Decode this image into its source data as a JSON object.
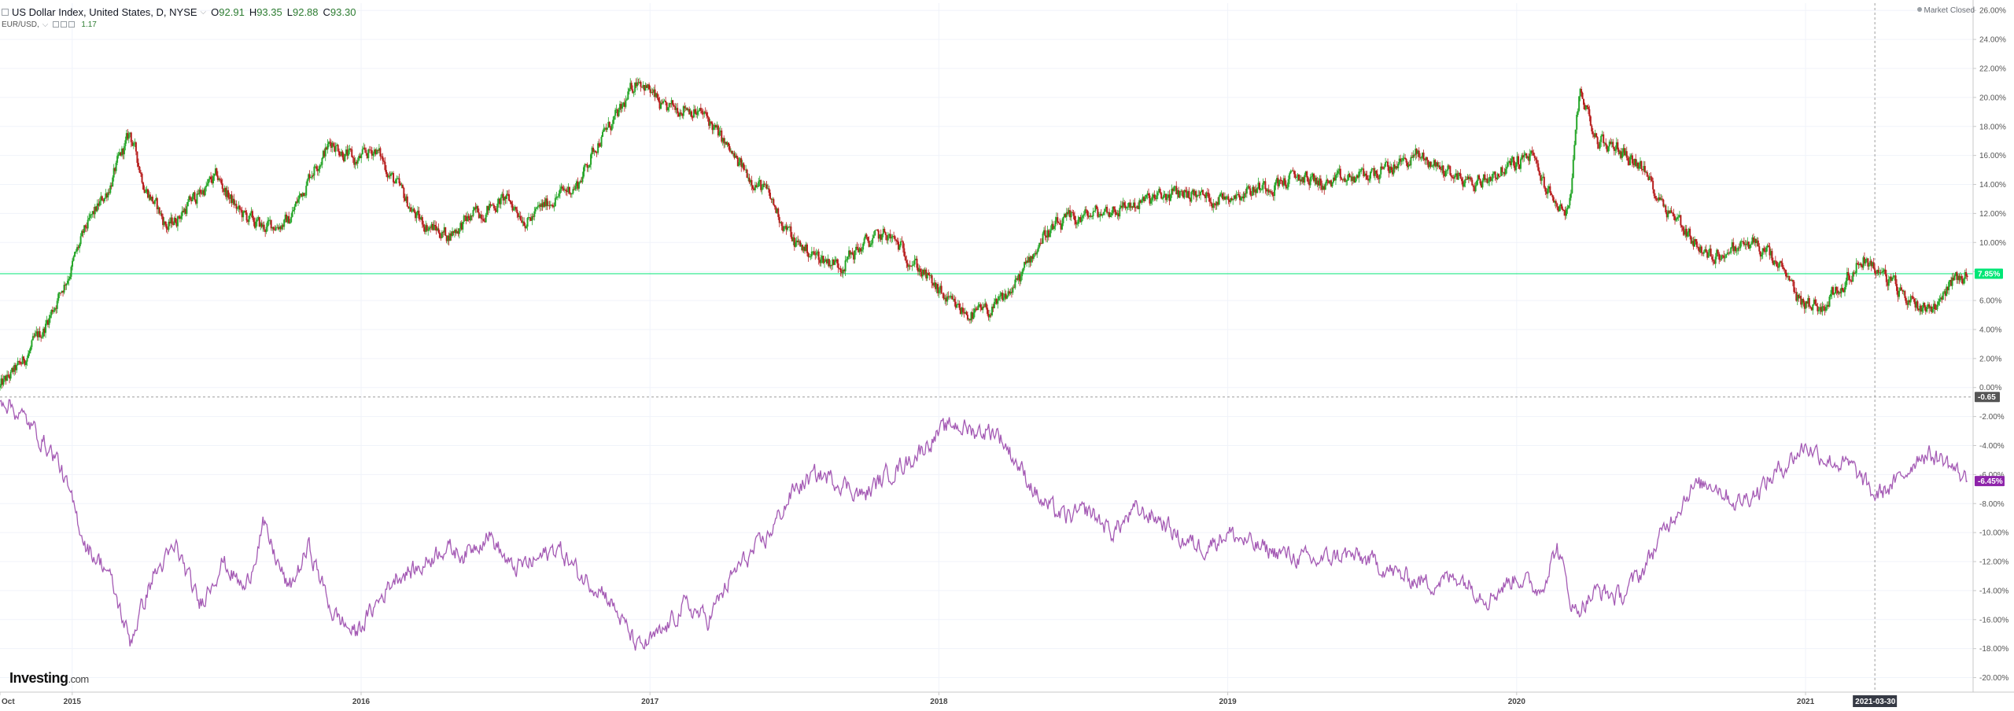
{
  "legend": {
    "main_symbol": "US Dollar Index, United States, D, NYSE",
    "open_label": "O",
    "open": "92.91",
    "high_label": "H",
    "high": "93.35",
    "low_label": "L",
    "low": "92.88",
    "close_label": "C",
    "close": "93.30",
    "compare_symbol": "EUR/USD,",
    "compare_value": "1.17"
  },
  "status": {
    "market": "Market Closed"
  },
  "logo": {
    "text": "Investing",
    "suffix": ".com"
  },
  "colors": {
    "up": "#26a629",
    "down": "#b71c1c",
    "compare_line": "#a45ab4",
    "price_line": "#00e676",
    "compare_badge": "#8e24aa",
    "zero_badge": "#555555"
  },
  "chart_data": {
    "type": "line",
    "x_axis_labels": [
      "Oct",
      "2015",
      "2016",
      "2017",
      "2018",
      "2019",
      "2020",
      "2021"
    ],
    "y_ticks": [
      "26.00%",
      "24.00%",
      "22.00%",
      "20.00%",
      "18.00%",
      "16.00%",
      "14.00%",
      "12.00%",
      "10.00%",
      "8.00%",
      "6.00%",
      "4.00%",
      "2.00%",
      "0.00%",
      "-2.00%",
      "-4.00%",
      "-6.00%",
      "-8.00%",
      "-10.00%",
      "-12.00%",
      "-14.00%",
      "-16.00%",
      "-18.00%",
      "-20.00%"
    ],
    "ylim": [
      -21,
      26.5
    ],
    "crosshair_date": "2021-03-30",
    "price_line_value": 7.85,
    "price_line_label": "7.85%",
    "zero_line_value": -0.65,
    "zero_line_label": "-0.65",
    "series": [
      {
        "symbol": "US Dollar Index",
        "style": "candles",
        "points": [
          [
            2014.75,
            0
          ],
          [
            2014.82,
            1.5
          ],
          [
            2014.9,
            4
          ],
          [
            2014.98,
            7.5
          ],
          [
            2015.05,
            11
          ],
          [
            2015.12,
            13.5
          ],
          [
            2015.2,
            17.5
          ],
          [
            2015.25,
            14
          ],
          [
            2015.33,
            11
          ],
          [
            2015.42,
            13
          ],
          [
            2015.5,
            14.5
          ],
          [
            2015.58,
            12
          ],
          [
            2015.66,
            11
          ],
          [
            2015.75,
            11.5
          ],
          [
            2015.83,
            15
          ],
          [
            2015.9,
            17
          ],
          [
            2015.98,
            15.5
          ],
          [
            2016.05,
            16.5
          ],
          [
            2016.12,
            14
          ],
          [
            2016.2,
            11.5
          ],
          [
            2016.3,
            10.5
          ],
          [
            2016.4,
            12
          ],
          [
            2016.5,
            13
          ],
          [
            2016.58,
            11.5
          ],
          [
            2016.66,
            13
          ],
          [
            2016.75,
            14
          ],
          [
            2016.82,
            17
          ],
          [
            2016.9,
            19
          ],
          [
            2016.96,
            21.5
          ],
          [
            2017.05,
            19
          ],
          [
            2017.12,
            19.5
          ],
          [
            2017.2,
            18.5
          ],
          [
            2017.3,
            15.5
          ],
          [
            2017.4,
            13.5
          ],
          [
            2017.5,
            10
          ],
          [
            2017.58,
            9
          ],
          [
            2017.66,
            8.5
          ],
          [
            2017.75,
            10
          ],
          [
            2017.82,
            10.5
          ],
          [
            2017.9,
            9
          ],
          [
            2017.98,
            7
          ],
          [
            2018.05,
            5.5
          ],
          [
            2018.12,
            5
          ],
          [
            2018.2,
            5.5
          ],
          [
            2018.28,
            7.5
          ],
          [
            2018.36,
            10.5
          ],
          [
            2018.45,
            11.5
          ],
          [
            2018.55,
            12
          ],
          [
            2018.65,
            12.5
          ],
          [
            2018.75,
            13
          ],
          [
            2018.85,
            13.5
          ],
          [
            2018.95,
            13
          ],
          [
            2019.05,
            13.5
          ],
          [
            2019.15,
            14
          ],
          [
            2019.25,
            14.5
          ],
          [
            2019.35,
            14
          ],
          [
            2019.45,
            14.5
          ],
          [
            2019.55,
            15
          ],
          [
            2019.65,
            16
          ],
          [
            2019.75,
            15
          ],
          [
            2019.85,
            14
          ],
          [
            2019.95,
            15
          ],
          [
            2020.05,
            16
          ],
          [
            2020.12,
            13
          ],
          [
            2020.18,
            12
          ],
          [
            2020.22,
            20.5
          ],
          [
            2020.28,
            17
          ],
          [
            2020.35,
            16.5
          ],
          [
            2020.42,
            15.5
          ],
          [
            2020.5,
            13
          ],
          [
            2020.58,
            11
          ],
          [
            2020.66,
            9
          ],
          [
            2020.75,
            9.5
          ],
          [
            2020.82,
            10
          ],
          [
            2020.9,
            8.5
          ],
          [
            2020.98,
            6
          ],
          [
            2021.05,
            5.5
          ],
          [
            2021.12,
            7
          ],
          [
            2021.2,
            9
          ],
          [
            2021.28,
            7.5
          ],
          [
            2021.36,
            6
          ],
          [
            2021.44,
            5.5
          ],
          [
            2021.5,
            7.2
          ],
          [
            2021.56,
            7.85
          ]
        ]
      },
      {
        "symbol": "EUR/USD",
        "style": "line",
        "points": [
          [
            2014.75,
            -0.5
          ],
          [
            2014.85,
            -2.5
          ],
          [
            2014.95,
            -5
          ],
          [
            2015.05,
            -11
          ],
          [
            2015.12,
            -12.5
          ],
          [
            2015.2,
            -17.5
          ],
          [
            2015.28,
            -13
          ],
          [
            2015.36,
            -11
          ],
          [
            2015.44,
            -15
          ],
          [
            2015.52,
            -12
          ],
          [
            2015.6,
            -14
          ],
          [
            2015.66,
            -9.5
          ],
          [
            2015.75,
            -14
          ],
          [
            2015.82,
            -11
          ],
          [
            2015.9,
            -15.5
          ],
          [
            2015.98,
            -17
          ],
          [
            2016.05,
            -15
          ],
          [
            2016.12,
            -13
          ],
          [
            2016.2,
            -12.5
          ],
          [
            2016.28,
            -11
          ],
          [
            2016.36,
            -11.5
          ],
          [
            2016.44,
            -10
          ],
          [
            2016.52,
            -12.5
          ],
          [
            2016.6,
            -12
          ],
          [
            2016.68,
            -11
          ],
          [
            2016.76,
            -13
          ],
          [
            2016.84,
            -14
          ],
          [
            2016.9,
            -16
          ],
          [
            2016.96,
            -18
          ],
          [
            2017.04,
            -17
          ],
          [
            2017.12,
            -15
          ],
          [
            2017.2,
            -16
          ],
          [
            2017.3,
            -12.5
          ],
          [
            2017.4,
            -10.5
          ],
          [
            2017.5,
            -7
          ],
          [
            2017.58,
            -6
          ],
          [
            2017.66,
            -6.5
          ],
          [
            2017.74,
            -7.5
          ],
          [
            2017.82,
            -6
          ],
          [
            2017.9,
            -5
          ],
          [
            2017.98,
            -3.5
          ],
          [
            2018.05,
            -2.5
          ],
          [
            2018.12,
            -3
          ],
          [
            2018.2,
            -3
          ],
          [
            2018.28,
            -5.5
          ],
          [
            2018.36,
            -8
          ],
          [
            2018.44,
            -9
          ],
          [
            2018.52,
            -8.5
          ],
          [
            2018.6,
            -10
          ],
          [
            2018.68,
            -8.5
          ],
          [
            2018.76,
            -9
          ],
          [
            2018.84,
            -10.5
          ],
          [
            2018.92,
            -11
          ],
          [
            2019.0,
            -10
          ],
          [
            2019.1,
            -11
          ],
          [
            2019.2,
            -11.5
          ],
          [
            2019.3,
            -12
          ],
          [
            2019.4,
            -11.5
          ],
          [
            2019.5,
            -12
          ],
          [
            2019.6,
            -13
          ],
          [
            2019.7,
            -13.5
          ],
          [
            2019.8,
            -13
          ],
          [
            2019.9,
            -14.5
          ],
          [
            2020.0,
            -13
          ],
          [
            2020.08,
            -14
          ],
          [
            2020.14,
            -11
          ],
          [
            2020.2,
            -15.5
          ],
          [
            2020.28,
            -14
          ],
          [
            2020.36,
            -14.5
          ],
          [
            2020.44,
            -12.5
          ],
          [
            2020.52,
            -9.5
          ],
          [
            2020.6,
            -7
          ],
          [
            2020.68,
            -6.5
          ],
          [
            2020.76,
            -8
          ],
          [
            2020.84,
            -7
          ],
          [
            2020.92,
            -5.5
          ],
          [
            2021.0,
            -4
          ],
          [
            2021.08,
            -5
          ],
          [
            2021.16,
            -5.5
          ],
          [
            2021.24,
            -7.5
          ],
          [
            2021.32,
            -6.5
          ],
          [
            2021.4,
            -4.5
          ],
          [
            2021.48,
            -5
          ],
          [
            2021.56,
            -6.45
          ]
        ],
        "last_label": "-6.45%"
      }
    ]
  }
}
